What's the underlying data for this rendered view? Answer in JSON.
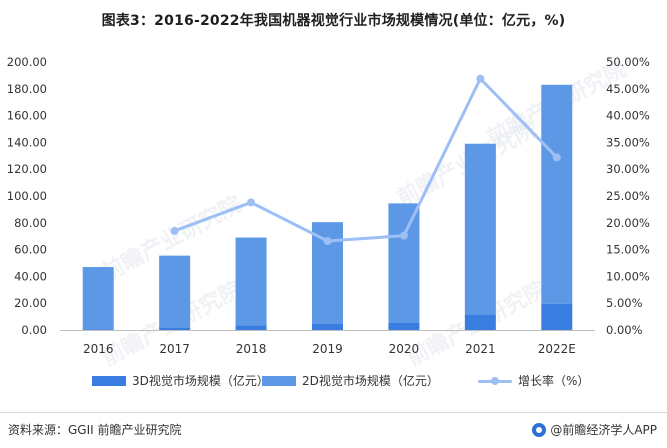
{
  "title": "图表3：2016-2022年我国机器视觉行业市场规模情况(单位：亿元，%)",
  "source": "资料来源：GGII 前瞻产业研究院",
  "brand": "@前瞻经济学人APP",
  "watermark": "前瞻产业研究院",
  "chart_data": {
    "type": "bar",
    "categories": [
      "2016",
      "2017",
      "2018",
      "2019",
      "2020",
      "2021",
      "2022E"
    ],
    "series": [
      {
        "name": "3D视觉市场规模（亿元）",
        "type": "bar",
        "stack": "total",
        "axis": "left",
        "color": "#3a7de0",
        "values": [
          0.5,
          1.5,
          3.5,
          4.5,
          5.5,
          11.5,
          19.5
        ]
      },
      {
        "name": "2D视觉市场规模（亿元）",
        "type": "bar",
        "stack": "total",
        "axis": "left",
        "color": "#5d98e6",
        "values": [
          46.5,
          54.0,
          65.5,
          76.0,
          89.0,
          127.5,
          163.5
        ]
      },
      {
        "name": "增长率（%）",
        "type": "line",
        "axis": "right",
        "color": "#9dbff5",
        "values": [
          null,
          18.5,
          23.8,
          16.6,
          17.6,
          46.9,
          32.2
        ]
      }
    ],
    "y_left": {
      "min": 0,
      "max": 200,
      "step": 20,
      "ticks": [
        "0.00",
        "20.00",
        "40.00",
        "60.00",
        "80.00",
        "100.00",
        "120.00",
        "140.00",
        "160.00",
        "180.00",
        "200.00"
      ]
    },
    "y_right": {
      "min": 0,
      "max": 50,
      "step": 5,
      "ticks": [
        "0.00%",
        "5.00%",
        "10.00%",
        "15.00%",
        "20.00%",
        "25.00%",
        "30.00%",
        "35.00%",
        "40.00%",
        "45.00%",
        "50.00%"
      ]
    },
    "grid": false,
    "legend_position": "bottom"
  }
}
